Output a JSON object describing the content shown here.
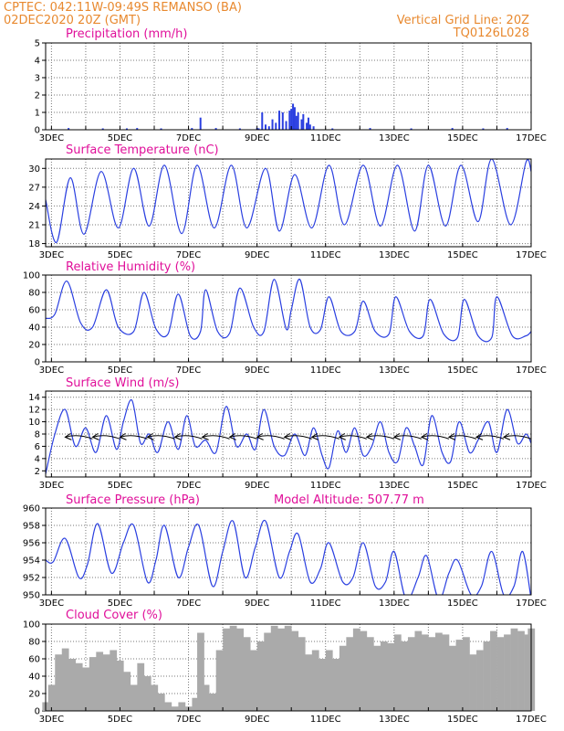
{
  "header": {
    "line1": "CPTEC:   042:11W-09:49S   REMANSO (BA)",
    "line2": "02DEC2020 20Z (GMT)",
    "right1": "Vertical Grid Line: 20Z",
    "right2": "TQ0126L028"
  },
  "colors": {
    "header": "#e8892f",
    "panel_title": "#e0109a",
    "line": "#2a3fe0",
    "bar": "#2a3fe0",
    "cloud": "#aaaaaa",
    "wind_arrow": "#000000"
  },
  "x_axis": {
    "tick_labels": [
      "3DEC",
      "5DEC",
      "7DEC",
      "9DEC",
      "11DEC",
      "13DEC",
      "15DEC",
      "17DEC"
    ],
    "start_day": 2.83,
    "end_day": 17.0
  },
  "chart_data": [
    {
      "type": "bar",
      "title": "Precipitation (mm/h)",
      "ylim": [
        0,
        5
      ],
      "yticks": [
        "0",
        "1",
        "2",
        "3",
        "4",
        "5"
      ],
      "points": [
        [
          3.5,
          0.1
        ],
        [
          4.5,
          0.08
        ],
        [
          5.2,
          0.08
        ],
        [
          5.5,
          0.1
        ],
        [
          6.2,
          0.08
        ],
        [
          7.1,
          0.1
        ],
        [
          7.35,
          0.7
        ],
        [
          7.8,
          0.1
        ],
        [
          8.5,
          0.08
        ],
        [
          9.0,
          0.1
        ],
        [
          9.05,
          0.08
        ],
        [
          9.15,
          1.0
        ],
        [
          9.25,
          0.3
        ],
        [
          9.35,
          0.2
        ],
        [
          9.45,
          0.6
        ],
        [
          9.55,
          0.4
        ],
        [
          9.65,
          1.1
        ],
        [
          9.75,
          1.0
        ],
        [
          9.85,
          0.5
        ],
        [
          9.95,
          1.1
        ],
        [
          10.0,
          1.2
        ],
        [
          10.05,
          1.5
        ],
        [
          10.1,
          1.3
        ],
        [
          10.15,
          0.8
        ],
        [
          10.2,
          1.0
        ],
        [
          10.3,
          0.6
        ],
        [
          10.35,
          0.9
        ],
        [
          10.45,
          0.4
        ],
        [
          10.5,
          0.7
        ],
        [
          10.55,
          0.3
        ],
        [
          10.65,
          0.2
        ],
        [
          11.2,
          0.08
        ],
        [
          12.3,
          0.1
        ],
        [
          13.5,
          0.08
        ],
        [
          14.7,
          0.1
        ],
        [
          15.6,
          0.08
        ],
        [
          16.3,
          0.1
        ]
      ]
    },
    {
      "type": "line",
      "title": "Surface Temperature (nC)",
      "ylim": [
        17.5,
        31.5
      ],
      "yticks": [
        "18",
        "21",
        "24",
        "27",
        "30"
      ],
      "points": [
        [
          2.83,
          25
        ],
        [
          3.15,
          18.2
        ],
        [
          3.55,
          28.5
        ],
        [
          3.95,
          19.5
        ],
        [
          4.45,
          29.5
        ],
        [
          4.95,
          20.5
        ],
        [
          5.4,
          30
        ],
        [
          5.85,
          20.8
        ],
        [
          6.3,
          30.5
        ],
        [
          6.8,
          19.6
        ],
        [
          7.25,
          30.5
        ],
        [
          7.75,
          20.5
        ],
        [
          8.25,
          30.5
        ],
        [
          8.7,
          20.5
        ],
        [
          9.25,
          30
        ],
        [
          9.65,
          20
        ],
        [
          10.1,
          29
        ],
        [
          10.6,
          20.5
        ],
        [
          11.1,
          30.5
        ],
        [
          11.55,
          21
        ],
        [
          12.1,
          30.5
        ],
        [
          12.6,
          20.8
        ],
        [
          13.1,
          30.5
        ],
        [
          13.6,
          20
        ],
        [
          14.0,
          30.5
        ],
        [
          14.5,
          20.8
        ],
        [
          14.95,
          30.5
        ],
        [
          15.45,
          21.5
        ],
        [
          15.85,
          31.5
        ],
        [
          16.4,
          21
        ],
        [
          16.85,
          31
        ],
        [
          17.0,
          29.5
        ]
      ]
    },
    {
      "type": "line",
      "title": "Relative Humidity (%)",
      "ylim": [
        0,
        100
      ],
      "yticks": [
        "0",
        "20",
        "40",
        "60",
        "80",
        "100"
      ],
      "points": [
        [
          2.83,
          50
        ],
        [
          3.1,
          55
        ],
        [
          3.45,
          93
        ],
        [
          3.85,
          45
        ],
        [
          4.2,
          40
        ],
        [
          4.6,
          83
        ],
        [
          4.95,
          40
        ],
        [
          5.4,
          35
        ],
        [
          5.7,
          80
        ],
        [
          6.05,
          38
        ],
        [
          6.4,
          32
        ],
        [
          6.7,
          78
        ],
        [
          7.05,
          30
        ],
        [
          7.35,
          35
        ],
        [
          7.5,
          83
        ],
        [
          7.85,
          35
        ],
        [
          8.2,
          33
        ],
        [
          8.5,
          85
        ],
        [
          8.9,
          40
        ],
        [
          9.2,
          35
        ],
        [
          9.5,
          95
        ],
        [
          9.85,
          38
        ],
        [
          10.0,
          60
        ],
        [
          10.25,
          95
        ],
        [
          10.55,
          40
        ],
        [
          10.85,
          37
        ],
        [
          11.1,
          75
        ],
        [
          11.45,
          35
        ],
        [
          11.85,
          35
        ],
        [
          12.1,
          70
        ],
        [
          12.45,
          35
        ],
        [
          12.85,
          32
        ],
        [
          13.05,
          75
        ],
        [
          13.45,
          35
        ],
        [
          13.85,
          30
        ],
        [
          14.05,
          72
        ],
        [
          14.45,
          32
        ],
        [
          14.85,
          28
        ],
        [
          15.05,
          72
        ],
        [
          15.45,
          30
        ],
        [
          15.85,
          28
        ],
        [
          16.0,
          75
        ],
        [
          16.45,
          30
        ],
        [
          16.85,
          30
        ],
        [
          17.0,
          35
        ]
      ]
    },
    {
      "type": "line",
      "title": "Surface Wind (m/s)",
      "ylim": [
        1,
        15
      ],
      "yticks": [
        "2",
        "4",
        "6",
        "8",
        "10",
        "12",
        "14"
      ],
      "points": [
        [
          2.83,
          1.5
        ],
        [
          3.1,
          8
        ],
        [
          3.4,
          12
        ],
        [
          3.7,
          6
        ],
        [
          4.0,
          9
        ],
        [
          4.3,
          5
        ],
        [
          4.6,
          11
        ],
        [
          4.9,
          5.5
        ],
        [
          5.1,
          10
        ],
        [
          5.35,
          13.5
        ],
        [
          5.6,
          6.5
        ],
        [
          5.85,
          8
        ],
        [
          6.1,
          5
        ],
        [
          6.4,
          10
        ],
        [
          6.7,
          5.5
        ],
        [
          6.95,
          11
        ],
        [
          7.2,
          6
        ],
        [
          7.5,
          7
        ],
        [
          7.8,
          5
        ],
        [
          8.1,
          12.5
        ],
        [
          8.4,
          6
        ],
        [
          8.7,
          8
        ],
        [
          8.95,
          5.5
        ],
        [
          9.2,
          12
        ],
        [
          9.5,
          6
        ],
        [
          9.8,
          4.5
        ],
        [
          10.1,
          8
        ],
        [
          10.4,
          4.5
        ],
        [
          10.65,
          9
        ],
        [
          10.9,
          4.5
        ],
        [
          11.1,
          2.5
        ],
        [
          11.35,
          8.5
        ],
        [
          11.6,
          5
        ],
        [
          11.85,
          9
        ],
        [
          12.1,
          4.5
        ],
        [
          12.35,
          6
        ],
        [
          12.6,
          10
        ],
        [
          12.85,
          5
        ],
        [
          13.1,
          3.5
        ],
        [
          13.35,
          9
        ],
        [
          13.6,
          6
        ],
        [
          13.85,
          3
        ],
        [
          14.1,
          11
        ],
        [
          14.4,
          5
        ],
        [
          14.65,
          3.5
        ],
        [
          14.9,
          10
        ],
        [
          15.2,
          5
        ],
        [
          15.45,
          7
        ],
        [
          15.75,
          10
        ],
        [
          16.0,
          5
        ],
        [
          16.3,
          12
        ],
        [
          16.6,
          6.5
        ],
        [
          16.85,
          8
        ],
        [
          17.0,
          6.5
        ]
      ],
      "wind_vectors": [
        [
          3.4,
          7.5
        ],
        [
          4.2,
          7.5
        ],
        [
          5.0,
          7.5
        ],
        [
          5.8,
          7.5
        ],
        [
          6.6,
          7.5
        ],
        [
          7.4,
          7.5
        ],
        [
          8.2,
          7.5
        ],
        [
          9.0,
          7.5
        ],
        [
          9.8,
          7.5
        ],
        [
          10.6,
          7.5
        ],
        [
          11.4,
          7.5
        ],
        [
          12.2,
          7.5
        ],
        [
          13.0,
          7.5
        ],
        [
          13.8,
          7.5
        ],
        [
          14.6,
          7.5
        ],
        [
          15.4,
          7.5
        ],
        [
          16.2,
          7.5
        ]
      ]
    },
    {
      "type": "line",
      "title": "Surface Pressure (hPa)",
      "subtitle": "Model Altitude: 507.77 m",
      "ylim": [
        950,
        960
      ],
      "yticks": [
        "950",
        "952",
        "954",
        "956",
        "958",
        "960"
      ],
      "points": [
        [
          2.83,
          954
        ],
        [
          3.05,
          953.8
        ],
        [
          3.4,
          956.5
        ],
        [
          3.8,
          952
        ],
        [
          4.05,
          953.5
        ],
        [
          4.35,
          958.2
        ],
        [
          4.75,
          952.5
        ],
        [
          5.1,
          956
        ],
        [
          5.4,
          958
        ],
        [
          5.8,
          951.5
        ],
        [
          6.05,
          954
        ],
        [
          6.3,
          958
        ],
        [
          6.7,
          952
        ],
        [
          7.0,
          955.5
        ],
        [
          7.3,
          958
        ],
        [
          7.7,
          951
        ],
        [
          8.0,
          955
        ],
        [
          8.3,
          958.5
        ],
        [
          8.65,
          952
        ],
        [
          8.95,
          955.5
        ],
        [
          9.25,
          958.5
        ],
        [
          9.65,
          952
        ],
        [
          9.95,
          955
        ],
        [
          10.2,
          957
        ],
        [
          10.55,
          951.5
        ],
        [
          10.85,
          953
        ],
        [
          11.1,
          956
        ],
        [
          11.5,
          951.5
        ],
        [
          11.8,
          952
        ],
        [
          12.1,
          956
        ],
        [
          12.45,
          951
        ],
        [
          12.75,
          951.5
        ],
        [
          13.0,
          955
        ],
        [
          13.35,
          949.5
        ],
        [
          13.7,
          952
        ],
        [
          13.95,
          954.5
        ],
        [
          14.3,
          949.5
        ],
        [
          14.6,
          952.5
        ],
        [
          14.85,
          954
        ],
        [
          15.25,
          950
        ],
        [
          15.55,
          951
        ],
        [
          15.85,
          955
        ],
        [
          16.2,
          950
        ],
        [
          16.5,
          951
        ],
        [
          16.75,
          955
        ],
        [
          17.0,
          949.5
        ]
      ]
    },
    {
      "type": "area",
      "title": "Cloud Cover (%)",
      "ylim": [
        0,
        100
      ],
      "yticks": [
        "0",
        "20",
        "40",
        "60",
        "80",
        "100"
      ],
      "points": [
        [
          2.83,
          10
        ],
        [
          3.0,
          30
        ],
        [
          3.2,
          65
        ],
        [
          3.4,
          72
        ],
        [
          3.6,
          60
        ],
        [
          3.8,
          55
        ],
        [
          4.0,
          50
        ],
        [
          4.2,
          62
        ],
        [
          4.4,
          68
        ],
        [
          4.6,
          65
        ],
        [
          4.8,
          70
        ],
        [
          5.0,
          58
        ],
        [
          5.2,
          45
        ],
        [
          5.4,
          30
        ],
        [
          5.6,
          55
        ],
        [
          5.8,
          40
        ],
        [
          6.0,
          30
        ],
        [
          6.2,
          20
        ],
        [
          6.4,
          10
        ],
        [
          6.6,
          5
        ],
        [
          6.8,
          10
        ],
        [
          7.0,
          5
        ],
        [
          7.2,
          15
        ],
        [
          7.35,
          90
        ],
        [
          7.5,
          30
        ],
        [
          7.7,
          20
        ],
        [
          7.9,
          70
        ],
        [
          8.1,
          95
        ],
        [
          8.3,
          98
        ],
        [
          8.5,
          95
        ],
        [
          8.7,
          85
        ],
        [
          8.9,
          70
        ],
        [
          9.1,
          80
        ],
        [
          9.3,
          90
        ],
        [
          9.5,
          98
        ],
        [
          9.7,
          95
        ],
        [
          9.9,
          98
        ],
        [
          10.1,
          92
        ],
        [
          10.3,
          85
        ],
        [
          10.5,
          65
        ],
        [
          10.7,
          70
        ],
        [
          10.9,
          60
        ],
        [
          11.1,
          70
        ],
        [
          11.3,
          60
        ],
        [
          11.5,
          75
        ],
        [
          11.7,
          85
        ],
        [
          11.9,
          95
        ],
        [
          12.1,
          92
        ],
        [
          12.3,
          85
        ],
        [
          12.5,
          75
        ],
        [
          12.7,
          80
        ],
        [
          12.9,
          78
        ],
        [
          13.1,
          88
        ],
        [
          13.3,
          80
        ],
        [
          13.5,
          85
        ],
        [
          13.7,
          92
        ],
        [
          13.9,
          88
        ],
        [
          14.1,
          85
        ],
        [
          14.3,
          90
        ],
        [
          14.5,
          88
        ],
        [
          14.7,
          75
        ],
        [
          14.9,
          82
        ],
        [
          15.1,
          85
        ],
        [
          15.3,
          65
        ],
        [
          15.5,
          70
        ],
        [
          15.7,
          80
        ],
        [
          15.9,
          92
        ],
        [
          16.1,
          85
        ],
        [
          16.3,
          88
        ],
        [
          16.5,
          95
        ],
        [
          16.7,
          92
        ],
        [
          16.9,
          88
        ],
        [
          17.0,
          95
        ]
      ]
    }
  ]
}
